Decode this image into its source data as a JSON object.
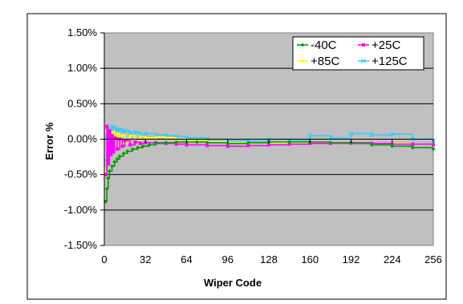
{
  "chart_data": {
    "type": "line",
    "title": "",
    "xlabel": "Wiper Code",
    "ylabel": "Error %",
    "xlim": [
      0,
      256
    ],
    "ylim": [
      -1.5,
      1.5
    ],
    "x_ticks": [
      0,
      32,
      64,
      96,
      128,
      160,
      192,
      224,
      256
    ],
    "y_ticks": [
      1.5,
      1.0,
      0.5,
      0.0,
      -0.5,
      -1.0,
      -1.5
    ],
    "x_tick_labels": [
      "0",
      "32",
      "64",
      "96",
      "128",
      "160",
      "192",
      "224",
      "256"
    ],
    "y_tick_labels": [
      "1.50%",
      "1.00%",
      "0.50%",
      "0.00%",
      "-0.50%",
      "-1.00%",
      "-1.50%"
    ],
    "grid": "horizontal",
    "plot_background": "#c0c0c0",
    "legend_position": "top-right",
    "series": [
      {
        "name": "-40C",
        "color": "#00a000",
        "marker": "diamond",
        "points": [
          [
            1,
            -0.88
          ],
          [
            2,
            -0.7
          ],
          [
            3,
            -0.55
          ],
          [
            4,
            -0.45
          ],
          [
            6,
            -0.38
          ],
          [
            8,
            -0.32
          ],
          [
            10,
            -0.28
          ],
          [
            12,
            -0.24
          ],
          [
            15,
            -0.2
          ],
          [
            18,
            -0.17
          ],
          [
            22,
            -0.14
          ],
          [
            26,
            -0.12
          ],
          [
            30,
            -0.1
          ],
          [
            35,
            -0.08
          ],
          [
            40,
            -0.06
          ],
          [
            48,
            -0.05
          ],
          [
            56,
            -0.04
          ],
          [
            64,
            -0.04
          ],
          [
            72,
            -0.04
          ],
          [
            80,
            -0.05
          ],
          [
            96,
            -0.06
          ],
          [
            112,
            -0.05
          ],
          [
            128,
            -0.04
          ],
          [
            144,
            -0.04
          ],
          [
            160,
            -0.04
          ],
          [
            176,
            -0.05
          ],
          [
            192,
            -0.06
          ],
          [
            208,
            -0.08
          ],
          [
            224,
            -0.1
          ],
          [
            240,
            -0.12
          ],
          [
            256,
            -0.14
          ]
        ]
      },
      {
        "name": "+25C",
        "color": "#ff00ff",
        "marker": "square",
        "points": [
          [
            1,
            -0.5
          ],
          [
            2,
            0.18
          ],
          [
            3,
            -0.35
          ],
          [
            4,
            0.12
          ],
          [
            5,
            -0.22
          ],
          [
            6,
            0.05
          ],
          [
            7,
            -0.18
          ],
          [
            8,
            0.02
          ],
          [
            10,
            -0.14
          ],
          [
            12,
            0.0
          ],
          [
            14,
            -0.1
          ],
          [
            16,
            -0.02
          ],
          [
            20,
            -0.08
          ],
          [
            24,
            -0.04
          ],
          [
            28,
            -0.06
          ],
          [
            32,
            -0.05
          ],
          [
            40,
            -0.05
          ],
          [
            48,
            -0.06
          ],
          [
            56,
            -0.07
          ],
          [
            64,
            -0.08
          ],
          [
            80,
            -0.09
          ],
          [
            96,
            -0.1
          ],
          [
            112,
            -0.09
          ],
          [
            128,
            -0.08
          ],
          [
            144,
            -0.07
          ],
          [
            160,
            -0.06
          ],
          [
            176,
            -0.06
          ],
          [
            192,
            -0.05
          ],
          [
            208,
            -0.06
          ],
          [
            224,
            -0.07
          ],
          [
            240,
            -0.07
          ],
          [
            256,
            -0.08
          ]
        ]
      },
      {
        "name": "+85C",
        "color": "#ffff00",
        "marker": "triangle",
        "points": [
          [
            1,
            -0.45
          ],
          [
            2,
            0.1
          ],
          [
            3,
            -0.3
          ],
          [
            4,
            0.08
          ],
          [
            5,
            -0.2
          ],
          [
            6,
            0.1
          ],
          [
            8,
            -0.12
          ],
          [
            10,
            0.08
          ],
          [
            12,
            -0.08
          ],
          [
            14,
            0.06
          ],
          [
            16,
            -0.05
          ],
          [
            20,
            0.05
          ],
          [
            24,
            -0.03
          ],
          [
            28,
            0.04
          ],
          [
            32,
            0.02
          ],
          [
            40,
            0.03
          ],
          [
            48,
            0.02
          ],
          [
            56,
            0.0
          ],
          [
            64,
            -0.02
          ],
          [
            80,
            -0.04
          ],
          [
            96,
            -0.05
          ],
          [
            112,
            -0.05
          ],
          [
            128,
            -0.05
          ],
          [
            144,
            -0.06
          ],
          [
            160,
            -0.05
          ],
          [
            176,
            -0.06
          ],
          [
            192,
            -0.05
          ],
          [
            208,
            -0.06
          ],
          [
            224,
            -0.06
          ],
          [
            240,
            -0.07
          ],
          [
            256,
            -0.08
          ]
        ]
      },
      {
        "name": "+125C",
        "color": "#33ccff",
        "marker": "x",
        "points": [
          [
            1,
            -0.3
          ],
          [
            2,
            0.05
          ],
          [
            4,
            0.12
          ],
          [
            6,
            0.18
          ],
          [
            8,
            0.15
          ],
          [
            10,
            0.12
          ],
          [
            12,
            0.14
          ],
          [
            14,
            0.1
          ],
          [
            16,
            0.12
          ],
          [
            20,
            0.08
          ],
          [
            24,
            0.1
          ],
          [
            28,
            0.06
          ],
          [
            32,
            0.08
          ],
          [
            40,
            0.06
          ],
          [
            48,
            0.05
          ],
          [
            56,
            0.04
          ],
          [
            64,
            0.02
          ],
          [
            80,
            0.0
          ],
          [
            96,
            -0.02
          ],
          [
            112,
            -0.03
          ],
          [
            128,
            0.0
          ],
          [
            144,
            -0.02
          ],
          [
            160,
            0.05
          ],
          [
            176,
            0.02
          ],
          [
            192,
            0.08
          ],
          [
            208,
            0.06
          ],
          [
            224,
            0.07
          ],
          [
            240,
            0.0
          ],
          [
            256,
            -0.02
          ]
        ]
      }
    ]
  }
}
